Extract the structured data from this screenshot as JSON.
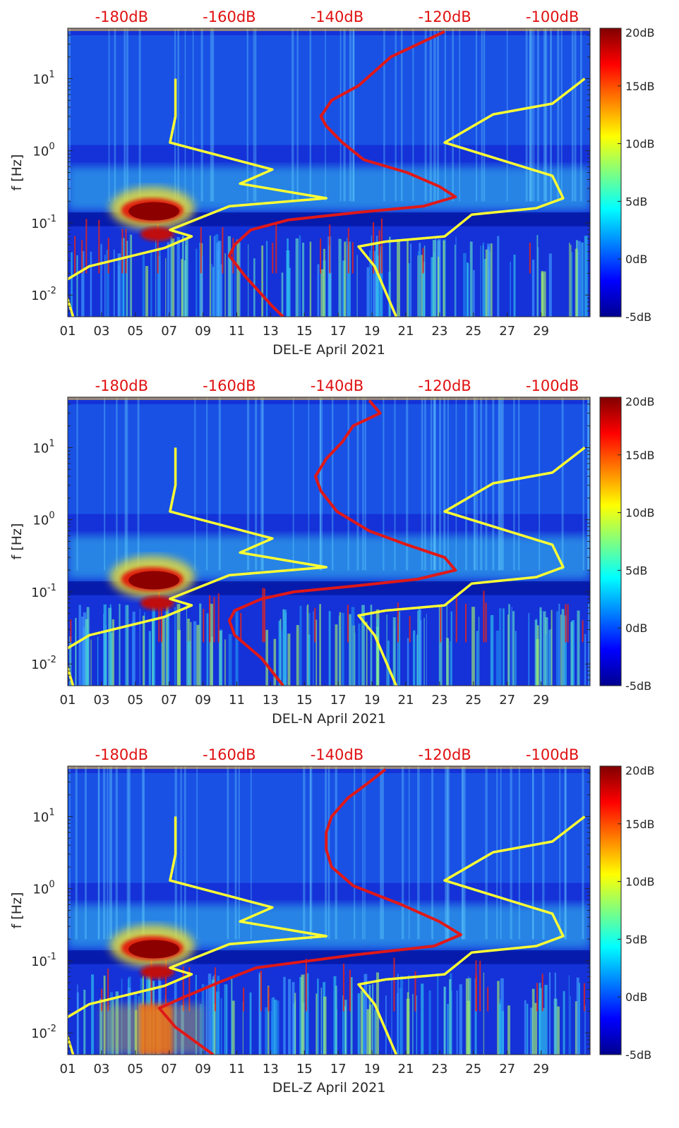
{
  "chart_data": [
    {
      "type": "heatmap",
      "title": "",
      "xlabel": "DEL-E April 2021",
      "ylabel": "f [Hz]",
      "x_unit": "day of month",
      "xlim": [
        1,
        31.9
      ],
      "x_ticks": [
        "01",
        "03",
        "05",
        "07",
        "09",
        "11",
        "13",
        "15",
        "17",
        "19",
        "21",
        "23",
        "25",
        "27",
        "29"
      ],
      "ylim": [
        0.005,
        50
      ],
      "y_scale": "log",
      "y_ticks": [
        {
          "value": 0.01,
          "base": "10",
          "exp": "-2"
        },
        {
          "value": 0.1,
          "base": "10",
          "exp": "-1"
        },
        {
          "value": 1,
          "base": "10",
          "exp": "0"
        },
        {
          "value": 10,
          "base": "10",
          "exp": "1"
        }
      ],
      "top_axis_label_values": [
        -180,
        -160,
        -140,
        -120,
        -100
      ],
      "top_axis_labels": [
        "-180dB",
        "-160dB",
        "-140dB",
        "-120dB",
        "-100dB"
      ],
      "top_axis_range_dB": [
        -190,
        -93
      ],
      "colorbar": {
        "range": [
          -5,
          20
        ],
        "ticks": [
          "20dB",
          "15dB",
          "10dB",
          "5dB",
          "0dB",
          "-5dB"
        ],
        "colormap": "jet"
      },
      "series": [
        {
          "name": "yellow-curve",
          "color": "#ffff33",
          "points": [
            [
              -170,
              10
            ],
            [
              -170,
              3
            ],
            [
              -171,
              1.3
            ],
            [
              -152,
              0.55
            ],
            [
              -158,
              0.35
            ],
            [
              -142,
              0.22
            ],
            [
              -160,
              0.17
            ],
            [
              -171,
              0.08
            ],
            [
              -167,
              0.065
            ],
            [
              -172,
              0.045
            ],
            [
              -186,
              0.025
            ],
            [
              -191,
              0.015
            ],
            [
              -189,
              0.005
            ]
          ]
        },
        {
          "name": "yellow-curve-right",
          "color": "#ffff33",
          "points": [
            [
              -94,
              10
            ],
            [
              -100,
              4.5
            ],
            [
              -111,
              3.2
            ],
            [
              -120,
              1.3
            ],
            [
              -100,
              0.45
            ],
            [
              -98,
              0.22
            ],
            [
              -103,
              0.16
            ],
            [
              -115,
              0.13
            ],
            [
              -120,
              0.065
            ],
            [
              -131,
              0.055
            ],
            [
              -136,
              0.047
            ],
            [
              -133,
              0.025
            ],
            [
              -129,
              0.005
            ]
          ]
        },
        {
          "name": "red-curve",
          "color": "#e01818",
          "points": [
            [
              -120,
              45
            ],
            [
              -130,
              20
            ],
            [
              -136,
              8
            ],
            [
              -141,
              5
            ],
            [
              -143,
              3
            ],
            [
              -142,
              2.2
            ],
            [
              -139,
              1.3
            ],
            [
              -135,
              0.75
            ],
            [
              -127,
              0.5
            ],
            [
              -121,
              0.32
            ],
            [
              -118,
              0.23
            ],
            [
              -124,
              0.17
            ],
            [
              -136,
              0.14
            ],
            [
              -149,
              0.11
            ],
            [
              -156,
              0.08
            ],
            [
              -159,
              0.05
            ],
            [
              -160,
              0.035
            ],
            [
              -157,
              0.018
            ],
            [
              -152,
              0.007
            ],
            [
              -150,
              0.005
            ]
          ]
        }
      ]
    },
    {
      "type": "heatmap",
      "title": "",
      "xlabel": "DEL-N April 2021",
      "ylabel": "f [Hz]",
      "x_unit": "day of month",
      "xlim": [
        1,
        31.9
      ],
      "x_ticks": [
        "01",
        "03",
        "05",
        "07",
        "09",
        "11",
        "13",
        "15",
        "17",
        "19",
        "21",
        "23",
        "25",
        "27",
        "29"
      ],
      "ylim": [
        0.005,
        50
      ],
      "y_scale": "log",
      "y_ticks": [
        {
          "value": 0.01,
          "base": "10",
          "exp": "-2"
        },
        {
          "value": 0.1,
          "base": "10",
          "exp": "-1"
        },
        {
          "value": 1,
          "base": "10",
          "exp": "0"
        },
        {
          "value": 10,
          "base": "10",
          "exp": "1"
        }
      ],
      "top_axis_label_values": [
        -180,
        -160,
        -140,
        -120,
        -100
      ],
      "top_axis_labels": [
        "-180dB",
        "-160dB",
        "-140dB",
        "-120dB",
        "-100dB"
      ],
      "top_axis_range_dB": [
        -190,
        -93
      ],
      "colorbar": {
        "range": [
          -5,
          20
        ],
        "ticks": [
          "20dB",
          "15dB",
          "10dB",
          "5dB",
          "0dB",
          "-5dB"
        ],
        "colormap": "jet"
      },
      "series": [
        {
          "name": "yellow-curve",
          "color": "#ffff33",
          "points": [
            [
              -170,
              10
            ],
            [
              -170,
              3
            ],
            [
              -171,
              1.3
            ],
            [
              -152,
              0.55
            ],
            [
              -158,
              0.35
            ],
            [
              -142,
              0.22
            ],
            [
              -160,
              0.17
            ],
            [
              -171,
              0.08
            ],
            [
              -167,
              0.065
            ],
            [
              -172,
              0.045
            ],
            [
              -186,
              0.025
            ],
            [
              -191,
              0.015
            ],
            [
              -189,
              0.005
            ]
          ]
        },
        {
          "name": "yellow-curve-right",
          "color": "#ffff33",
          "points": [
            [
              -94,
              10
            ],
            [
              -100,
              4.5
            ],
            [
              -111,
              3.2
            ],
            [
              -120,
              1.3
            ],
            [
              -100,
              0.45
            ],
            [
              -98,
              0.22
            ],
            [
              -103,
              0.16
            ],
            [
              -115,
              0.13
            ],
            [
              -120,
              0.065
            ],
            [
              -131,
              0.055
            ],
            [
              -136,
              0.047
            ],
            [
              -133,
              0.025
            ],
            [
              -129,
              0.005
            ]
          ]
        },
        {
          "name": "red-curve",
          "color": "#e01818",
          "points": [
            [
              -134,
              45
            ],
            [
              -132,
              30
            ],
            [
              -137,
              20
            ],
            [
              -139,
              12
            ],
            [
              -142,
              7
            ],
            [
              -144,
              4
            ],
            [
              -143,
              2.5
            ],
            [
              -140,
              1.3
            ],
            [
              -134,
              0.7
            ],
            [
              -127,
              0.45
            ],
            [
              -120,
              0.3
            ],
            [
              -118,
              0.2
            ],
            [
              -125,
              0.15
            ],
            [
              -137,
              0.12
            ],
            [
              -148,
              0.1
            ],
            [
              -154,
              0.08
            ],
            [
              -159,
              0.055
            ],
            [
              -160,
              0.04
            ],
            [
              -159,
              0.025
            ],
            [
              -154,
              0.012
            ],
            [
              -150,
              0.005
            ]
          ]
        }
      ]
    },
    {
      "type": "heatmap",
      "title": "",
      "xlabel": "DEL-Z April 2021",
      "ylabel": "f [Hz]",
      "x_unit": "day of month",
      "xlim": [
        1,
        31.9
      ],
      "x_ticks": [
        "01",
        "03",
        "05",
        "07",
        "09",
        "11",
        "13",
        "15",
        "17",
        "19",
        "21",
        "23",
        "25",
        "27",
        "29"
      ],
      "ylim": [
        0.005,
        50
      ],
      "y_scale": "log",
      "y_ticks": [
        {
          "value": 0.01,
          "base": "10",
          "exp": "-2"
        },
        {
          "value": 0.1,
          "base": "10",
          "exp": "-1"
        },
        {
          "value": 1,
          "base": "10",
          "exp": "0"
        },
        {
          "value": 10,
          "base": "10",
          "exp": "1"
        }
      ],
      "top_axis_label_values": [
        -180,
        -160,
        -140,
        -120,
        -100
      ],
      "top_axis_labels": [
        "-180dB",
        "-160dB",
        "-140dB",
        "-120dB",
        "-100dB"
      ],
      "top_axis_range_dB": [
        -190,
        -93
      ],
      "colorbar": {
        "range": [
          -5,
          20
        ],
        "ticks": [
          "20dB",
          "15dB",
          "10dB",
          "5dB",
          "0dB",
          "-5dB"
        ],
        "colormap": "jet"
      },
      "series": [
        {
          "name": "yellow-curve",
          "color": "#ffff33",
          "points": [
            [
              -170,
              10
            ],
            [
              -170,
              3
            ],
            [
              -171,
              1.3
            ],
            [
              -152,
              0.55
            ],
            [
              -158,
              0.35
            ],
            [
              -142,
              0.22
            ],
            [
              -160,
              0.17
            ],
            [
              -171,
              0.08
            ],
            [
              -167,
              0.065
            ],
            [
              -172,
              0.045
            ],
            [
              -186,
              0.025
            ],
            [
              -191,
              0.015
            ],
            [
              -189,
              0.005
            ]
          ]
        },
        {
          "name": "yellow-curve-right",
          "color": "#ffff33",
          "points": [
            [
              -94,
              10
            ],
            [
              -100,
              4.5
            ],
            [
              -111,
              3.2
            ],
            [
              -120,
              1.3
            ],
            [
              -100,
              0.45
            ],
            [
              -98,
              0.22
            ],
            [
              -103,
              0.16
            ],
            [
              -115,
              0.13
            ],
            [
              -120,
              0.065
            ],
            [
              -131,
              0.055
            ],
            [
              -136,
              0.047
            ],
            [
              -133,
              0.025
            ],
            [
              -129,
              0.005
            ]
          ]
        },
        {
          "name": "red-curve",
          "color": "#e01818",
          "points": [
            [
              -131,
              45
            ],
            [
              -134,
              30
            ],
            [
              -138,
              18
            ],
            [
              -141,
              10
            ],
            [
              -142,
              6
            ],
            [
              -142,
              3.5
            ],
            [
              -141,
              2
            ],
            [
              -137,
              1.1
            ],
            [
              -128,
              0.6
            ],
            [
              -121,
              0.35
            ],
            [
              -117,
              0.23
            ],
            [
              -122,
              0.16
            ],
            [
              -137,
              0.12
            ],
            [
              -155,
              0.08
            ],
            [
              -162,
              0.05
            ],
            [
              -169,
              0.03
            ],
            [
              -173,
              0.022
            ],
            [
              -170,
              0.012
            ],
            [
              -163,
              0.005
            ]
          ]
        }
      ]
    }
  ]
}
